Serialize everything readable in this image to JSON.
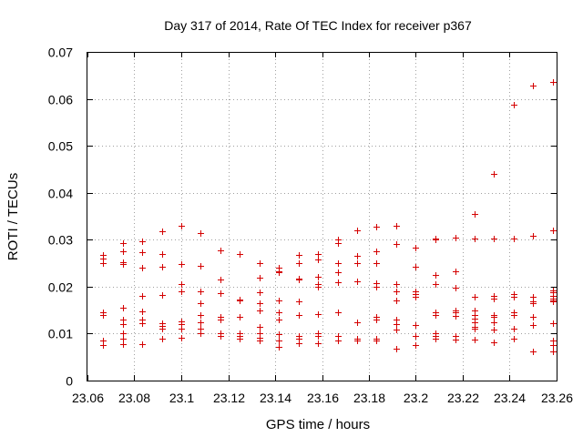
{
  "chart_data": {
    "type": "scatter",
    "title": "Day 317 of 2014, Rate Of TEC Index for receiver p367",
    "xlabel": "GPS time / hours",
    "ylabel": "ROTI / TECUs",
    "xlim": [
      23.06,
      23.26
    ],
    "ylim": [
      0,
      0.07
    ],
    "x_ticks": [
      23.06,
      23.08,
      23.1,
      23.12,
      23.14,
      23.16,
      23.18,
      23.2,
      23.22,
      23.24,
      23.26
    ],
    "x_tick_labels": [
      "23.06",
      "23.08",
      "23.1",
      "23.12",
      "23.14",
      "23.16",
      "23.18",
      "23.2",
      "23.22",
      "23.24",
      "23.26"
    ],
    "y_ticks": [
      0,
      0.01,
      0.02,
      0.03,
      0.04,
      0.05,
      0.06,
      0.07
    ],
    "y_tick_labels": [
      "0",
      "0.01",
      "0.02",
      "0.03",
      "0.04",
      "0.05",
      "0.06",
      "0.07"
    ],
    "grid": true,
    "marker": "+",
    "color": "#d40000",
    "series": [
      {
        "name": "ROTI",
        "points": [
          [
            23.0667,
            0.0268
          ],
          [
            23.0667,
            0.026
          ],
          [
            23.0667,
            0.0251
          ],
          [
            23.0667,
            0.0145
          ],
          [
            23.0667,
            0.014
          ],
          [
            23.0667,
            0.0085
          ],
          [
            23.0667,
            0.0075
          ],
          [
            23.075,
            0.0292
          ],
          [
            23.075,
            0.0275
          ],
          [
            23.075,
            0.0252
          ],
          [
            23.075,
            0.0249
          ],
          [
            23.075,
            0.0155
          ],
          [
            23.075,
            0.013
          ],
          [
            23.075,
            0.012
          ],
          [
            23.075,
            0.01
          ],
          [
            23.075,
            0.009
          ],
          [
            23.075,
            0.0078
          ],
          [
            23.0833,
            0.0297
          ],
          [
            23.0833,
            0.0273
          ],
          [
            23.0833,
            0.024
          ],
          [
            23.0833,
            0.018
          ],
          [
            23.0833,
            0.0148
          ],
          [
            23.0833,
            0.013
          ],
          [
            23.0833,
            0.0122
          ],
          [
            23.0833,
            0.0077
          ],
          [
            23.0917,
            0.0318
          ],
          [
            23.0917,
            0.027
          ],
          [
            23.0917,
            0.0242
          ],
          [
            23.0917,
            0.0183
          ],
          [
            23.0917,
            0.0122
          ],
          [
            23.0917,
            0.0117
          ],
          [
            23.0917,
            0.011
          ],
          [
            23.0917,
            0.009
          ],
          [
            23.1,
            0.033
          ],
          [
            23.1,
            0.0248
          ],
          [
            23.1,
            0.0205
          ],
          [
            23.1,
            0.019
          ],
          [
            23.1,
            0.0127
          ],
          [
            23.1,
            0.012
          ],
          [
            23.1,
            0.011
          ],
          [
            23.1,
            0.0092
          ],
          [
            23.1083,
            0.0314
          ],
          [
            23.1083,
            0.0245
          ],
          [
            23.1083,
            0.019
          ],
          [
            23.1083,
            0.0165
          ],
          [
            23.1083,
            0.014
          ],
          [
            23.1083,
            0.0125
          ],
          [
            23.1083,
            0.011
          ],
          [
            23.1083,
            0.01
          ],
          [
            23.1167,
            0.0278
          ],
          [
            23.1167,
            0.0215
          ],
          [
            23.1167,
            0.0187
          ],
          [
            23.1167,
            0.0135
          ],
          [
            23.1167,
            0.013
          ],
          [
            23.1167,
            0.01
          ],
          [
            23.1167,
            0.0095
          ],
          [
            23.125,
            0.0269
          ],
          [
            23.125,
            0.0172
          ],
          [
            23.125,
            0.017
          ],
          [
            23.125,
            0.0135
          ],
          [
            23.125,
            0.01
          ],
          [
            23.125,
            0.0095
          ],
          [
            23.125,
            0.009
          ],
          [
            23.1333,
            0.025
          ],
          [
            23.1333,
            0.022
          ],
          [
            23.1333,
            0.0188
          ],
          [
            23.1333,
            0.0165
          ],
          [
            23.1333,
            0.015
          ],
          [
            23.1333,
            0.0115
          ],
          [
            23.1333,
            0.01
          ],
          [
            23.1333,
            0.0092
          ],
          [
            23.1333,
            0.0085
          ],
          [
            23.1417,
            0.024
          ],
          [
            23.1417,
            0.0232
          ],
          [
            23.1417,
            0.023
          ],
          [
            23.1417,
            0.017
          ],
          [
            23.1417,
            0.0145
          ],
          [
            23.1417,
            0.013
          ],
          [
            23.1417,
            0.0098
          ],
          [
            23.1417,
            0.0085
          ],
          [
            23.1417,
            0.0072
          ],
          [
            23.15,
            0.0268
          ],
          [
            23.15,
            0.025
          ],
          [
            23.15,
            0.0218
          ],
          [
            23.15,
            0.0215
          ],
          [
            23.15,
            0.0168
          ],
          [
            23.15,
            0.014
          ],
          [
            23.15,
            0.0095
          ],
          [
            23.15,
            0.009
          ],
          [
            23.15,
            0.008
          ],
          [
            23.1583,
            0.027
          ],
          [
            23.1583,
            0.0258
          ],
          [
            23.1583,
            0.0222
          ],
          [
            23.1583,
            0.0205
          ],
          [
            23.1583,
            0.02
          ],
          [
            23.1583,
            0.0142
          ],
          [
            23.1583,
            0.01
          ],
          [
            23.1583,
            0.0095
          ],
          [
            23.1583,
            0.008
          ],
          [
            23.1667,
            0.03
          ],
          [
            23.1667,
            0.0293
          ],
          [
            23.1667,
            0.025
          ],
          [
            23.1667,
            0.023
          ],
          [
            23.1667,
            0.021
          ],
          [
            23.1667,
            0.0145
          ],
          [
            23.1667,
            0.0095
          ],
          [
            23.1667,
            0.0085
          ],
          [
            23.175,
            0.032
          ],
          [
            23.175,
            0.0265
          ],
          [
            23.175,
            0.025
          ],
          [
            23.175,
            0.0212
          ],
          [
            23.175,
            0.0125
          ],
          [
            23.175,
            0.009
          ],
          [
            23.175,
            0.0085
          ],
          [
            23.1833,
            0.0327
          ],
          [
            23.1833,
            0.0275
          ],
          [
            23.1833,
            0.025
          ],
          [
            23.1833,
            0.0208
          ],
          [
            23.1833,
            0.02
          ],
          [
            23.1833,
            0.0135
          ],
          [
            23.1833,
            0.013
          ],
          [
            23.1833,
            0.009
          ],
          [
            23.1833,
            0.0085
          ],
          [
            23.1917,
            0.033
          ],
          [
            23.1917,
            0.029
          ],
          [
            23.1917,
            0.0205
          ],
          [
            23.1917,
            0.019
          ],
          [
            23.1917,
            0.017
          ],
          [
            23.1917,
            0.013
          ],
          [
            23.1917,
            0.012
          ],
          [
            23.1917,
            0.0108
          ],
          [
            23.1917,
            0.0068
          ],
          [
            23.2,
            0.0283
          ],
          [
            23.2,
            0.0243
          ],
          [
            23.2,
            0.019
          ],
          [
            23.2,
            0.0185
          ],
          [
            23.2,
            0.0178
          ],
          [
            23.2,
            0.0118
          ],
          [
            23.2,
            0.0095
          ],
          [
            23.2,
            0.0075
          ],
          [
            23.2083,
            0.0303
          ],
          [
            23.2083,
            0.03
          ],
          [
            23.2083,
            0.0225
          ],
          [
            23.2083,
            0.0205
          ],
          [
            23.2083,
            0.0145
          ],
          [
            23.2083,
            0.014
          ],
          [
            23.2083,
            0.01
          ],
          [
            23.2083,
            0.0095
          ],
          [
            23.2083,
            0.009
          ],
          [
            23.2167,
            0.0305
          ],
          [
            23.2167,
            0.0232
          ],
          [
            23.2167,
            0.0198
          ],
          [
            23.2167,
            0.015
          ],
          [
            23.2167,
            0.0145
          ],
          [
            23.2167,
            0.0138
          ],
          [
            23.2167,
            0.0095
          ],
          [
            23.2167,
            0.0088
          ],
          [
            23.225,
            0.0355
          ],
          [
            23.225,
            0.0302
          ],
          [
            23.225,
            0.0178
          ],
          [
            23.225,
            0.015
          ],
          [
            23.225,
            0.014
          ],
          [
            23.225,
            0.0132
          ],
          [
            23.225,
            0.0125
          ],
          [
            23.225,
            0.0115
          ],
          [
            23.225,
            0.011
          ],
          [
            23.225,
            0.0088
          ],
          [
            23.2333,
            0.044
          ],
          [
            23.2333,
            0.0302
          ],
          [
            23.2333,
            0.018
          ],
          [
            23.2333,
            0.0175
          ],
          [
            23.2333,
            0.014
          ],
          [
            23.2333,
            0.0135
          ],
          [
            23.2333,
            0.0125
          ],
          [
            23.2333,
            0.0108
          ],
          [
            23.2333,
            0.0082
          ],
          [
            23.2417,
            0.0588
          ],
          [
            23.2417,
            0.0302
          ],
          [
            23.2417,
            0.0185
          ],
          [
            23.2417,
            0.0178
          ],
          [
            23.2417,
            0.0145
          ],
          [
            23.2417,
            0.014
          ],
          [
            23.2417,
            0.011
          ],
          [
            23.2417,
            0.009
          ],
          [
            23.25,
            0.0628
          ],
          [
            23.25,
            0.0308
          ],
          [
            23.25,
            0.0178
          ],
          [
            23.25,
            0.0168
          ],
          [
            23.25,
            0.0165
          ],
          [
            23.25,
            0.0135
          ],
          [
            23.25,
            0.0118
          ],
          [
            23.25,
            0.0062
          ],
          [
            23.2583,
            0.0636
          ],
          [
            23.2583,
            0.032
          ],
          [
            23.2583,
            0.0192
          ],
          [
            23.2583,
            0.0188
          ],
          [
            23.2583,
            0.018
          ],
          [
            23.2583,
            0.0175
          ],
          [
            23.2583,
            0.017
          ],
          [
            23.2583,
            0.0168
          ],
          [
            23.2583,
            0.0122
          ],
          [
            23.2583,
            0.0085
          ],
          [
            23.2583,
            0.0075
          ],
          [
            23.2583,
            0.0062
          ]
        ]
      }
    ]
  }
}
